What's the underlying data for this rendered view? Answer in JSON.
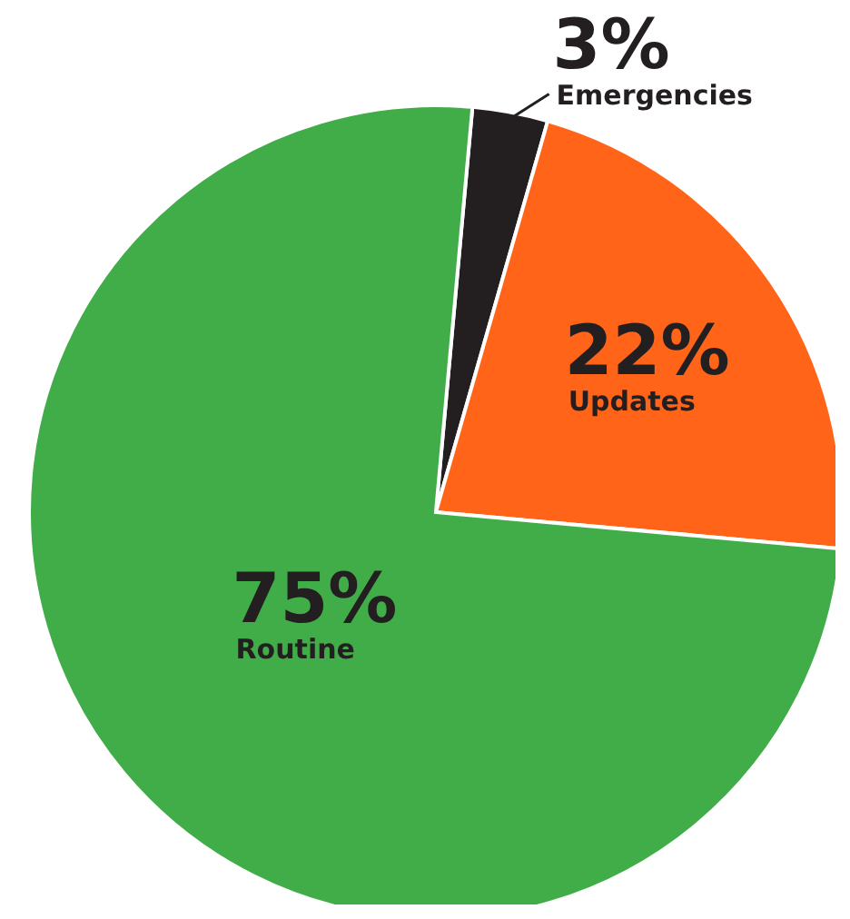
{
  "chart_data": {
    "type": "pie",
    "categories": [
      "Emergencies",
      "Updates",
      "Routine"
    ],
    "values": [
      3,
      22,
      75
    ],
    "colors": [
      "#231f20",
      "#ff6418",
      "#41ad49"
    ],
    "value_labels": [
      "3%",
      "22%",
      "75%"
    ]
  }
}
